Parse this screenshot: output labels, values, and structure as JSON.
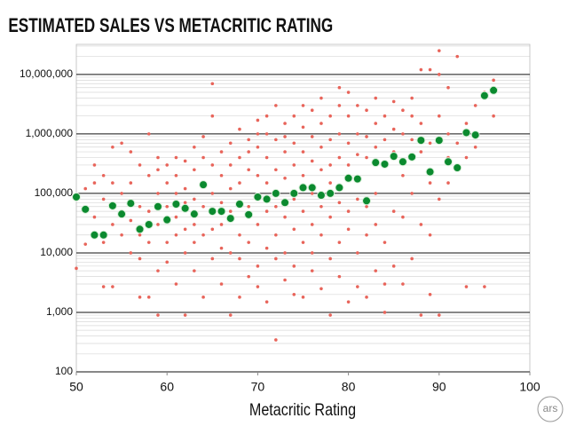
{
  "chart_data": {
    "type": "scatter",
    "title": "ESTIMATED SALES VS METACRITIC RATING",
    "x_label": "Metacritic Rating",
    "logo": "ars",
    "xlim": [
      50,
      100
    ],
    "xticks": [
      50,
      60,
      70,
      80,
      90,
      100
    ],
    "ylim": [
      100,
      32000000
    ],
    "yticks": [
      100,
      {
        "value": 1000,
        "label": "1,000"
      },
      {
        "value": 10000,
        "label": "10,000"
      },
      {
        "value": 100000,
        "label": "100,000"
      },
      {
        "value": 1000000,
        "label": "1,000,000"
      },
      {
        "value": 10000000,
        "label": "10,000,000"
      }
    ],
    "log_y": true,
    "grid": true,
    "minor_grid": true,
    "series": [
      {
        "color": "#e8645a",
        "x": [
          50,
          50,
          51,
          51,
          51,
          52,
          52,
          52,
          52,
          53,
          53,
          53,
          53,
          54,
          54,
          54,
          54,
          55,
          55,
          55,
          55,
          56,
          56,
          56,
          56,
          57,
          57,
          57,
          57,
          57,
          58,
          58,
          58,
          58,
          58,
          59,
          59,
          59,
          59,
          59,
          59,
          60,
          60,
          60,
          60,
          60,
          61,
          61,
          61,
          61,
          61,
          61,
          62,
          62,
          62,
          62,
          62,
          62,
          63,
          63,
          63,
          63,
          63,
          63,
          64,
          64,
          64,
          64,
          64,
          64,
          65,
          65,
          65,
          65,
          65,
          65,
          66,
          66,
          66,
          66,
          66,
          66,
          67,
          67,
          67,
          67,
          67,
          67,
          68,
          68,
          68,
          68,
          68,
          68,
          69,
          69,
          69,
          69,
          69,
          69,
          70,
          70,
          70,
          70,
          70,
          70,
          70,
          71,
          71,
          71,
          71,
          71,
          71,
          71,
          72,
          72,
          72,
          72,
          72,
          72,
          72,
          73,
          73,
          73,
          73,
          73,
          73,
          73,
          74,
          74,
          74,
          74,
          74,
          74,
          74,
          75,
          75,
          75,
          75,
          75,
          75,
          75,
          76,
          76,
          76,
          76,
          76,
          76,
          76,
          77,
          77,
          77,
          77,
          77,
          77,
          77,
          78,
          78,
          78,
          78,
          78,
          78,
          78,
          79,
          79,
          79,
          79,
          79,
          79,
          79,
          80,
          80,
          80,
          80,
          80,
          80,
          80,
          81,
          81,
          81,
          81,
          81,
          81,
          82,
          82,
          82,
          82,
          82,
          82,
          83,
          83,
          83,
          83,
          83,
          83,
          84,
          84,
          84,
          84,
          84,
          84,
          85,
          85,
          85,
          85,
          85,
          86,
          86,
          86,
          86,
          86,
          87,
          87,
          87,
          87,
          87,
          88,
          88,
          88,
          88,
          88,
          89,
          89,
          89,
          89,
          89,
          90,
          90,
          90,
          90,
          90,
          91,
          91,
          91,
          91,
          92,
          92,
          92,
          93,
          93,
          93,
          94,
          94,
          95,
          95,
          96,
          96
        ],
        "values": [
          5500,
          90000,
          14000,
          120000,
          60000,
          300000,
          20000,
          150000,
          40000,
          2700,
          15000,
          200000,
          80000,
          2700,
          600000,
          30000,
          150000,
          700000,
          100000,
          20000,
          50000,
          500000,
          10000,
          150000,
          35000,
          1800,
          8000,
          300000,
          60000,
          20000,
          1800,
          1000000,
          15000,
          200000,
          50000,
          900,
          5000,
          250000,
          100000,
          30000,
          400000,
          7000,
          300000,
          15000,
          150000,
          60000,
          3000,
          400000,
          20000,
          200000,
          100000,
          40000,
          900,
          10000,
          350000,
          120000,
          25000,
          70000,
          5000,
          600000,
          15000,
          250000,
          80000,
          30000,
          1800,
          900000,
          20000,
          400000,
          150000,
          60000,
          7000000,
          8000,
          300000,
          25000,
          100000,
          2000000,
          3000,
          500000,
          12000,
          200000,
          70000,
          30000,
          900,
          700000,
          10000,
          300000,
          120000,
          50000,
          1800,
          1200000,
          8000,
          400000,
          150000,
          20000,
          4000,
          800000,
          15000,
          250000,
          60000,
          500000,
          2700,
          1700000,
          6000,
          600000,
          200000,
          30000,
          1000000,
          1500,
          1000000,
          12000,
          400000,
          150000,
          50000,
          2000000,
          345,
          3000000,
          8000,
          800000,
          250000,
          20000,
          60000,
          3500,
          1500000,
          10000,
          500000,
          180000,
          40000,
          900000,
          2000,
          2000000,
          6000,
          700000,
          300000,
          25000,
          80000,
          1800,
          1300000,
          15000,
          500000,
          200000,
          50000,
          3000000,
          5000,
          2500000,
          10000,
          900000,
          350000,
          30000,
          100000,
          2500,
          1500000,
          20000,
          600000,
          250000,
          60000,
          4000000,
          900,
          2000000,
          8000,
          800000,
          300000,
          40000,
          150000,
          4000,
          3000000,
          15000,
          1000000,
          400000,
          70000,
          6000000,
          1500,
          2000000,
          25000,
          700000,
          300000,
          50000,
          5000000,
          2700,
          3000000,
          10000,
          1000000,
          450000,
          80000,
          1800,
          2500000,
          20000,
          900000,
          400000,
          60000,
          5000,
          4000000,
          30000,
          1500000,
          600000,
          100000,
          1000,
          2000000,
          15000,
          800000,
          300000,
          3000,
          6000,
          3500000,
          50000,
          1200000,
          500000,
          3000,
          2500000,
          40000,
          1000000,
          200000,
          8000,
          2000000,
          100000,
          800000,
          4000000,
          900,
          12000000,
          30000,
          1500000,
          500000,
          2000,
          12000000,
          20000,
          700000,
          150000,
          900,
          25000000,
          10000000,
          80000,
          2000000,
          6000000,
          400000,
          1000000,
          150000,
          20000000,
          700000,
          250000,
          1500000,
          400000,
          2700,
          3000000,
          600000,
          2700,
          5000000,
          8000000,
          2000000
        ]
      },
      {
        "color": "#0b8a2f",
        "x": [
          50,
          51,
          52,
          53,
          54,
          55,
          56,
          57,
          58,
          59,
          60,
          61,
          62,
          63,
          64,
          65,
          66,
          67,
          68,
          69,
          70,
          71,
          72,
          73,
          74,
          75,
          76,
          77,
          78,
          79,
          80,
          81,
          82,
          83,
          84,
          85,
          86,
          87,
          88,
          89,
          90,
          91,
          92,
          93,
          94,
          95,
          96
        ],
        "values": [
          87000,
          54000,
          20000,
          20000,
          62000,
          45000,
          68000,
          25000,
          30000,
          60000,
          36000,
          66000,
          56000,
          45000,
          140000,
          50000,
          50000,
          38000,
          66000,
          44000,
          87000,
          80000,
          100000,
          70000,
          100000,
          125000,
          125000,
          93000,
          100000,
          125000,
          180000,
          175000,
          75000,
          330000,
          310000,
          420000,
          340000,
          410000,
          780000,
          230000,
          780000,
          340000,
          270000,
          1050000,
          960000,
          4400000,
          5400000
        ]
      }
    ]
  }
}
